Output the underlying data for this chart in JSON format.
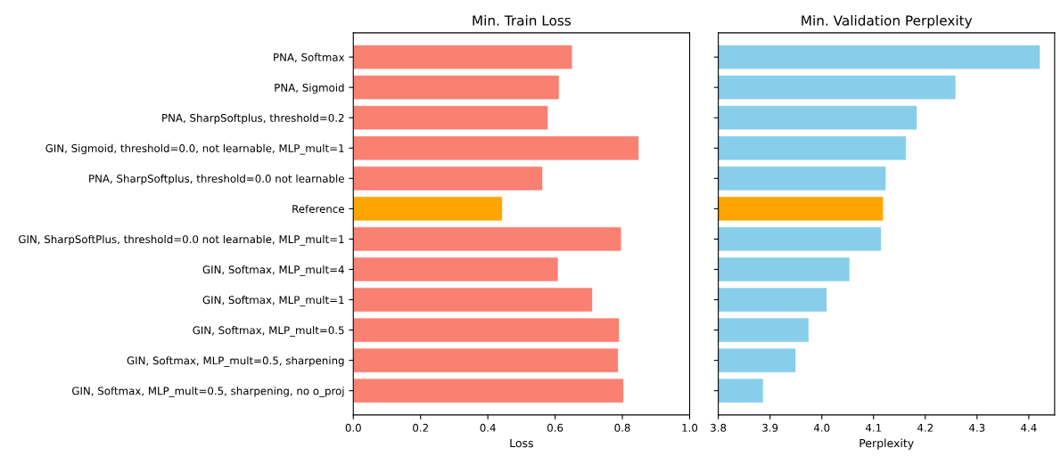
{
  "chart_data": [
    {
      "type": "bar",
      "orientation": "horizontal",
      "title": "Min. Train Loss",
      "xlabel": "Loss",
      "categories": [
        "PNA, Softmax",
        "PNA, Sigmoid",
        "PNA, SharpSoftplus, threshold=0.2",
        "GIN, Sigmoid, threshold=0.0, not learnable, MLP_mult=1",
        "PNA, SharpSoftplus, threshold=0.0 not learnable",
        "Reference",
        "GIN, SharpSoftPlus, threshold=0.0 not learnable, MLP_mult=1",
        "GIN, Softmax, MLP_mult=4",
        "GIN, Softmax, MLP_mult=1",
        "GIN, Softmax, MLP_mult=0.5",
        "GIN, Softmax, MLP_mult=0.5, sharpening",
        "GIN, Softmax, MLP_mult=0.5, sharpening, no o_proj"
      ],
      "values": [
        0.651,
        0.612,
        0.579,
        0.849,
        0.563,
        0.443,
        0.797,
        0.609,
        0.711,
        0.791,
        0.788,
        0.804
      ],
      "colors": [
        "#fa8072",
        "#fa8072",
        "#fa8072",
        "#fa8072",
        "#fa8072",
        "#ffa500",
        "#fa8072",
        "#fa8072",
        "#fa8072",
        "#fa8072",
        "#fa8072",
        "#fa8072"
      ],
      "xlim": [
        0.0,
        1.0
      ],
      "xticks": [
        {
          "value": 0.0,
          "label": "0.0"
        },
        0.2,
        0.4,
        0.6,
        0.8,
        {
          "value": 1.0,
          "label": "1.0"
        }
      ],
      "grid": false,
      "legend": false
    },
    {
      "type": "bar",
      "orientation": "horizontal",
      "title": "Min. Validation Perplexity",
      "xlabel": "Perplexity",
      "categories": [
        null,
        null,
        null,
        null,
        null,
        null,
        null,
        null,
        null,
        null,
        null,
        null
      ],
      "values": [
        4.422,
        4.259,
        4.184,
        4.163,
        4.124,
        4.119,
        4.115,
        4.054,
        4.01,
        3.975,
        3.95,
        3.887
      ],
      "colors": [
        "#87ceeb",
        "#87ceeb",
        "#87ceeb",
        "#87ceeb",
        "#87ceeb",
        "#ffa500",
        "#87ceeb",
        "#87ceeb",
        "#87ceeb",
        "#87ceeb",
        "#87ceeb",
        "#87ceeb"
      ],
      "xlim": [
        3.8,
        4.45
      ],
      "xticks": [
        3.8,
        3.9,
        {
          "value": 4.0,
          "label": "4.0"
        },
        4.1,
        4.2,
        4.3,
        4.4
      ],
      "tick_labels": "x",
      "grid": false,
      "legend": false
    }
  ]
}
